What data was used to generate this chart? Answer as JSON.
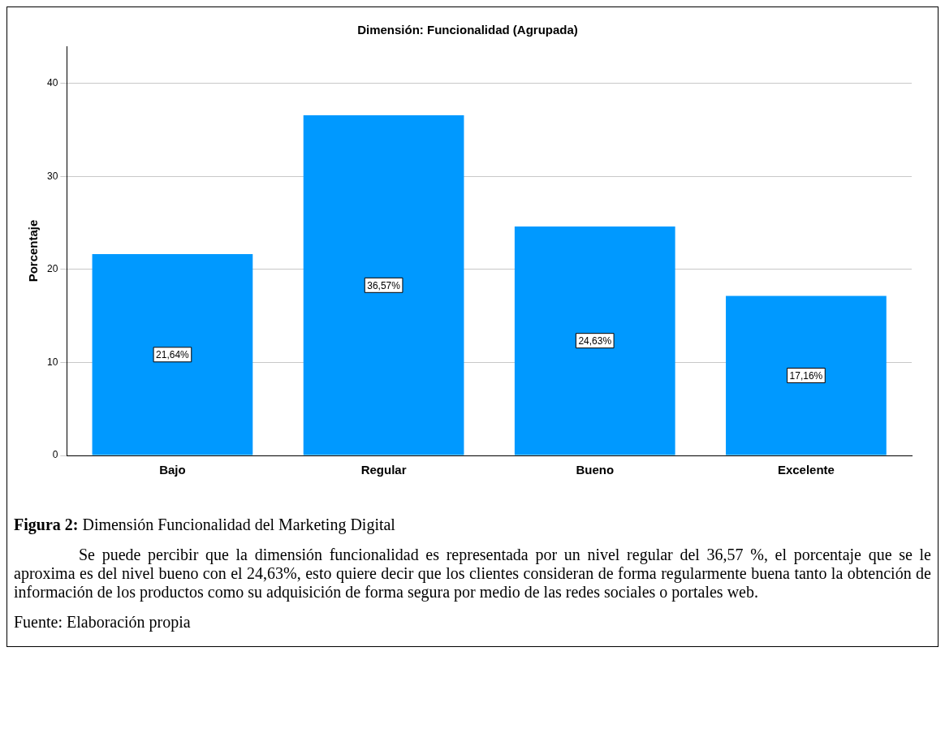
{
  "chart_data": {
    "type": "bar",
    "title": "Dimensión: Funcionalidad (Agrupada)",
    "ylabel": "Porcentaje",
    "categories": [
      "Bajo",
      "Regular",
      "Bueno",
      "Excelente"
    ],
    "values": [
      21.64,
      36.57,
      24.63,
      17.16
    ],
    "value_labels": [
      "21,64%",
      "36,57%",
      "24,63%",
      "17,16%"
    ],
    "color": "#0099ff",
    "ylim": [
      0,
      44
    ],
    "yticks": [
      0,
      10,
      20,
      30,
      40
    ],
    "grid": "y",
    "legend": false,
    "annotations": [
      "Figura 2: Dimensión Funcionalidad del Marketing Digital",
      "Se puede percibir que la dimensión funcionalidad es representada por un nivel regular del 36,57 %, el porcentaje que se le aproxima es del nivel bueno con el 24,63%, esto quiere decir que los clientes consideran de forma regularmente buena tanto la obtención de información de los productos como su adquisición de forma segura por medio de las redes sociales o portales web.",
      "Fuente: Elaboración propia"
    ]
  }
}
